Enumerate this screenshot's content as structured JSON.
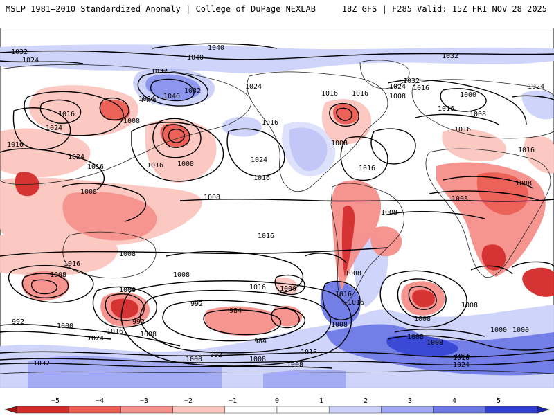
{
  "header": {
    "left": "MSLP 1981–2010 Standardized Anomaly | College of DuPage NEXLAB",
    "right": "18Z GFS | F285 Valid: 15Z FRI NOV 28 2025"
  },
  "map": {
    "projection": "global cylindrical, Pacific-centered",
    "contour_labels": [
      "1032",
      "1024",
      "1040",
      "1040",
      "1032",
      "1032",
      "1040",
      "1024",
      "1032",
      "1016",
      "1024",
      "1016",
      "1032",
      "1016",
      "1024",
      "1000",
      "1024",
      "1016",
      "1024",
      "1008",
      "1024",
      "1016",
      "1008",
      "1008",
      "1016",
      "1008",
      "1008",
      "1016",
      "1016",
      "1008",
      "1016",
      "1016",
      "1024",
      "1016",
      "1024",
      "1016",
      "1016",
      "1008",
      "1008",
      "1008",
      "1008",
      "1016",
      "1016",
      "1008",
      "1008",
      "1008",
      "1008",
      "1000",
      "1016",
      "1016",
      "1000",
      "1016",
      "1008",
      "1008",
      "992",
      "984",
      "992",
      "984",
      "992",
      "1000",
      "1008",
      "1016",
      "1024",
      "1000",
      "1008",
      "1016",
      "1008",
      "1008",
      "1016",
      "1000",
      "1032",
      "1000",
      "992",
      "1008",
      "1016",
      "1008",
      "1024"
    ]
  },
  "colorbar": {
    "ticks": [
      "−5",
      "−4",
      "−3",
      "−2",
      "−1",
      "0",
      "1",
      "2",
      "3",
      "4",
      "5"
    ],
    "colors": [
      "#a81010",
      "#d42a2a",
      "#ec5a50",
      "#f6908a",
      "#fbc7bf",
      "#ffffff",
      "#ffffff",
      "#cdd2fa",
      "#9fa7f2",
      "#6c78e6",
      "#3040d4",
      "#1420b8"
    ]
  }
}
